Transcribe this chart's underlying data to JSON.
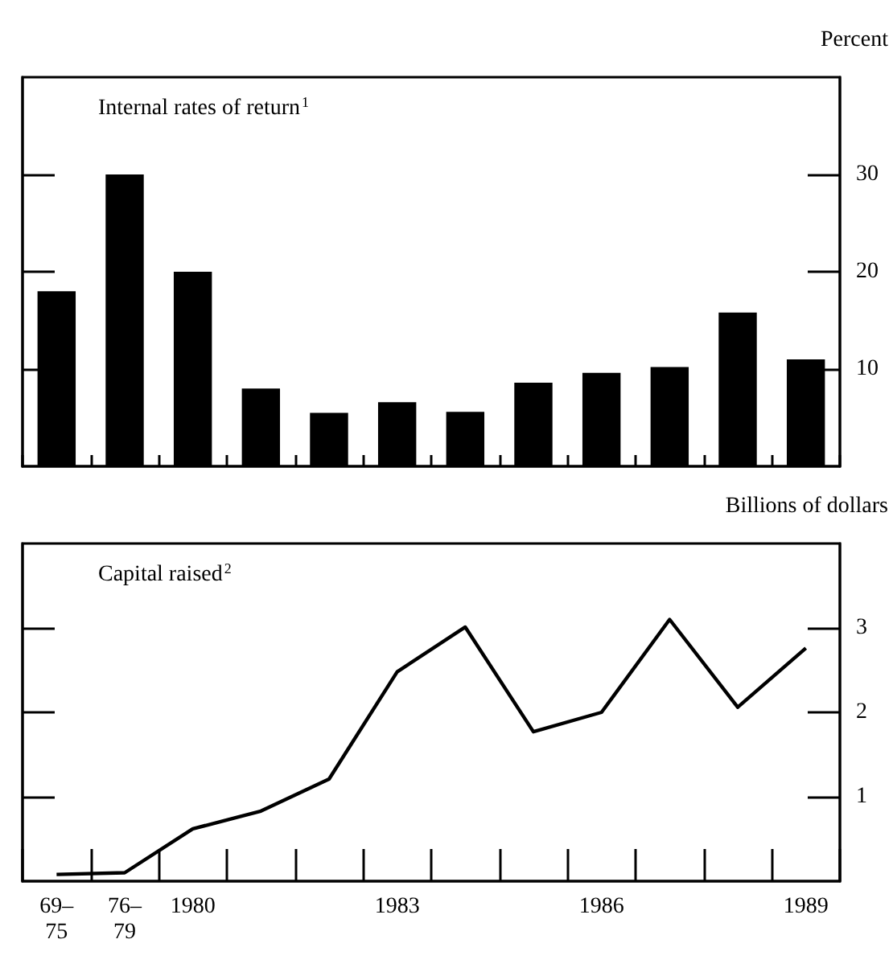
{
  "chart_data": [
    {
      "type": "bar",
      "title": "Internal rates of return$^{1}$",
      "ylabel": "Percent",
      "categories": [
        null,
        null,
        null,
        null,
        null,
        null,
        null,
        null,
        null,
        null,
        null,
        null
      ],
      "values": [
        18,
        30,
        20,
        8,
        5.5,
        6.6,
        5.6,
        8.6,
        9.6,
        10.2,
        15.8,
        11
      ],
      "color": "#000000",
      "ylim": [
        0,
        40
      ],
      "yticks": [
        10,
        20,
        30
      ],
      "tick_labels": "y"
    },
    {
      "type": "line",
      "title": "Capital raised$^{2}$",
      "ylabel": "Billions of dollars",
      "categories": [
        "69–\n75",
        "76–\n79",
        "1980",
        null,
        null,
        "1983",
        null,
        null,
        "1986",
        null,
        null,
        "1989"
      ],
      "values": [
        0.08,
        0.1,
        0.62,
        0.83,
        1.21,
        2.48,
        3.01,
        1.77,
        2.0,
        3.1,
        2.06,
        2.76
      ],
      "color": "#000000",
      "ylim": [
        0,
        4
      ],
      "yticks": [
        1,
        2,
        3
      ],
      "marker": "none",
      "line_style": "solid"
    }
  ]
}
